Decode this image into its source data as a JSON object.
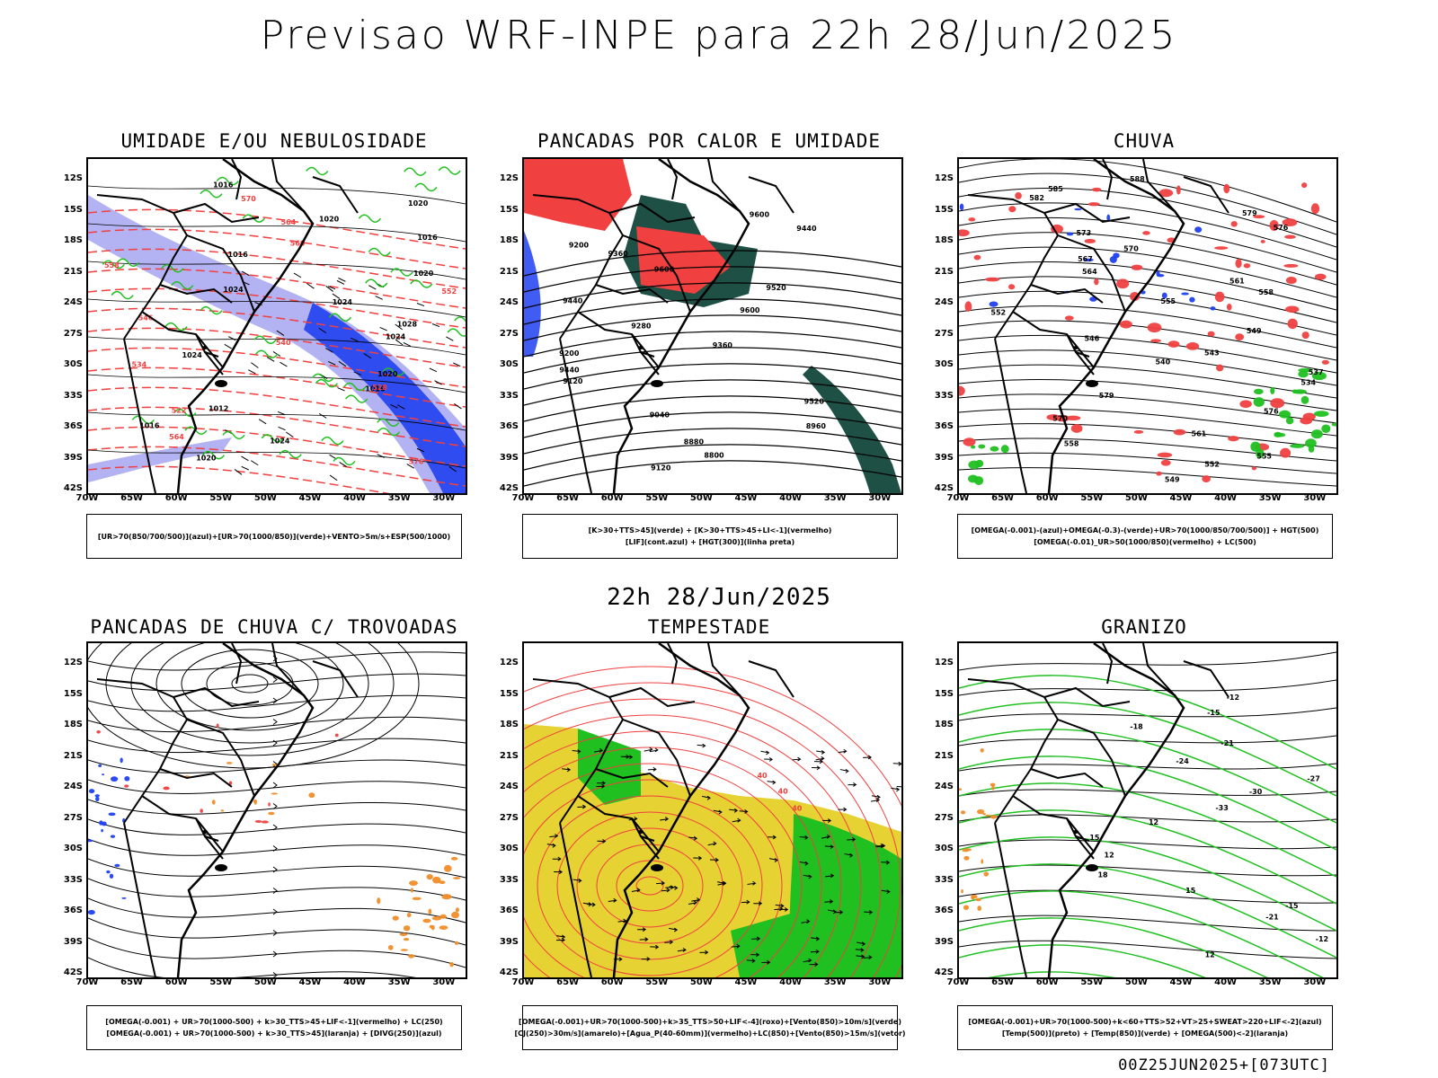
{
  "header": {
    "title": "Previsao WRF-INPE  para 22h 28/Jun/2025"
  },
  "middle": {
    "date": "22h 28/Jun/2025"
  },
  "footer": {
    "stamp": "00Z25JUN2025+[073UTC]"
  },
  "axes": {
    "lat_labels": [
      "12S",
      "15S",
      "18S",
      "21S",
      "24S",
      "27S",
      "30S",
      "33S",
      "36S",
      "39S",
      "42S"
    ],
    "lon_labels": [
      "70W",
      "65W",
      "60W",
      "55W",
      "50W",
      "45W",
      "40W",
      "35W",
      "30W"
    ]
  },
  "colors": {
    "red": "#f04040",
    "green": "#20c020",
    "blue": "#2040f0",
    "lightblue": "#a0a0f0",
    "yellow": "#e6d232",
    "orange": "#f08c28",
    "darkteal": "#1e5046",
    "black": "#000000"
  },
  "panels": [
    {
      "id": "umidade",
      "title": "UMIDADE E/OU NEBULOSIDADE",
      "legend": [
        "[UR>70(850/700/500)](azul)+[UR>70(1000/850)](verde)+VENTO>5m/s+ESP(500/1000)"
      ],
      "contour_labels": [
        "1016",
        "1020",
        "1020",
        "1016",
        "1016",
        "1020",
        "1024",
        "1024",
        "1028",
        "1024",
        "1024",
        "1020",
        "1016",
        "1012",
        "1016",
        "1024",
        "1020"
      ],
      "red_labels": [
        "570",
        "564",
        "560",
        "558",
        "552",
        "546",
        "540",
        "534",
        "528",
        "522",
        "564",
        "576"
      ]
    },
    {
      "id": "pancadas",
      "title": "PANCADAS POR CALOR E UMIDADE",
      "legend": [
        "[K>30+TTS>45](verde) + [K>30+TTS>45+LI<-1](vermelho)",
        "[LIF](cont.azul) + [HGT(300)](linha preta)"
      ],
      "contour_labels": [
        "9600",
        "9440",
        "9200",
        "9360",
        "9600",
        "9520",
        "9440",
        "9600",
        "9280",
        "9360",
        "9200",
        "9440",
        "9120",
        "9520",
        "9040",
        "8960",
        "8880",
        "8800",
        "9120"
      ]
    },
    {
      "id": "chuva",
      "title": "CHUVA",
      "legend": [
        "[OMEGA(-0.001)-(azul)+OMEGA(-0.3)-(verde)+UR>70(1000/850/700/500)] + HGT(500)",
        "[OMEGA(-0.01)_UR>50(1000/850)(vermelho) + LC(500)"
      ],
      "contour_labels": [
        "588",
        "585",
        "582",
        "579",
        "576",
        "573",
        "570",
        "567",
        "564",
        "561",
        "558",
        "555",
        "552",
        "549",
        "546",
        "543",
        "540",
        "537",
        "534",
        "579",
        "576",
        "570",
        "561",
        "558",
        "555",
        "552",
        "549"
      ]
    },
    {
      "id": "trovoadas",
      "title": "PANCADAS DE CHUVA C/ TROVOADAS",
      "legend": [
        "[OMEGA(-0.001) + UR>70(1000-500) + k>30_TTS>45+LIF<-1](vermelho) + LC(250)",
        "[OMEGA(-0.001) + UR>70(1000-500) + k>30_TTS>45](laranja) + [DIVG(250)](azul)"
      ]
    },
    {
      "id": "tempestade",
      "title": "TEMPESTADE",
      "legend": [
        "[OMEGA(-0.001)+UR>70(1000-500)+k>35_TTS>50+LIF<-4](roxo)+[Vento(850)>10m/s](verde)",
        "[CJ(250)>30m/s](amarelo)+[Agua_P(40-60mm)](vermelho)+LC(850)+[Vento(850)>15m/s](vetor)"
      ],
      "contour_labels": [
        "40",
        "40",
        "40"
      ]
    },
    {
      "id": "granizo",
      "title": "GRANIZO",
      "legend": [
        "[OMEGA(-0.001)+UR>70(1000-500)+k<60+TTS>52+VT>25+SWEAT>220+LIF<-2](azul)",
        "[Temp(500)](preto) + [Temp(850)](verde) + [OMEGA(500)<-2](laranja)"
      ],
      "contour_labels": [
        "-12",
        "-15",
        "-18",
        "-21",
        "-24",
        "-27",
        "-30",
        "-33",
        "12",
        "15",
        "12",
        "18",
        "15",
        "-15",
        "-21",
        "-12",
        "12"
      ]
    }
  ]
}
